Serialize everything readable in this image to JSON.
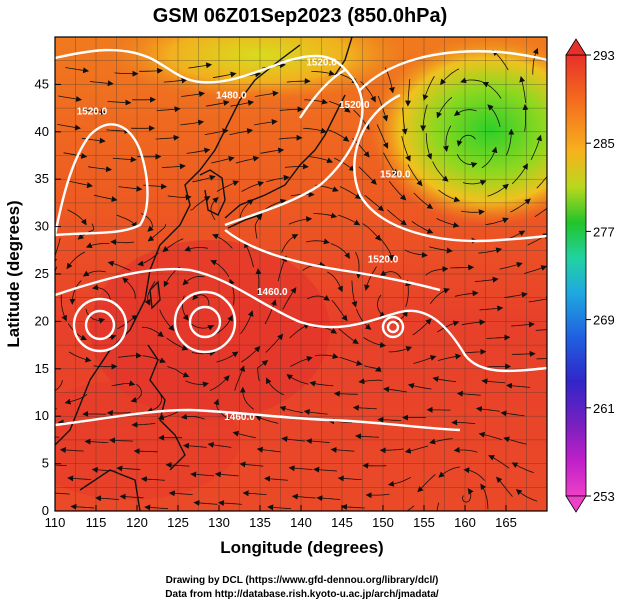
{
  "title": "GSM 06Z01Sep2023 (850.0hPa)",
  "xlabel": "Longitude (degrees)",
  "ylabel": "Latitude  (degrees)",
  "x_ticks": [
    "110",
    "115",
    "120",
    "125",
    "130",
    "135",
    "140",
    "145",
    "150",
    "155",
    "160",
    "165"
  ],
  "y_ticks": [
    "0",
    "5",
    "10",
    "15",
    "20",
    "25",
    "30",
    "35",
    "40",
    "45"
  ],
  "colorbar": {
    "ticks": [
      "293",
      "285",
      "277",
      "269",
      "261",
      "253"
    ],
    "colors_top_to_bottom": [
      "#e8302a",
      "#f46a1e",
      "#f7b21e",
      "#9bd41d",
      "#22c42a",
      "#22d2a0",
      "#1fa8e0",
      "#2060e0",
      "#3026c8",
      "#7a20c0",
      "#c020c8",
      "#ee40c8"
    ]
  },
  "contour_labels": [
    {
      "text": "1520.0",
      "lon": 114.5,
      "lat": 41.8
    },
    {
      "text": "1480.0",
      "lon": 131.5,
      "lat": 43.5
    },
    {
      "text": "1520.0",
      "lon": 142.5,
      "lat": 47.0
    },
    {
      "text": "1520.0",
      "lon": 146.5,
      "lat": 42.5
    },
    {
      "text": "1520.0",
      "lon": 151.5,
      "lat": 35.2
    },
    {
      "text": "1520.0",
      "lon": 150.0,
      "lat": 26.2
    },
    {
      "text": "1460.0",
      "lon": 136.5,
      "lat": 22.8
    },
    {
      "text": "1460.0",
      "lon": 132.5,
      "lat": 9.6
    }
  ],
  "credits": [
    "Drawing by DCL (https://www.gfd-dennou.org/library/dcl/)",
    "Data from http://database.rish.kyoto-u.ac.jp/arch/jmadata/"
  ]
}
